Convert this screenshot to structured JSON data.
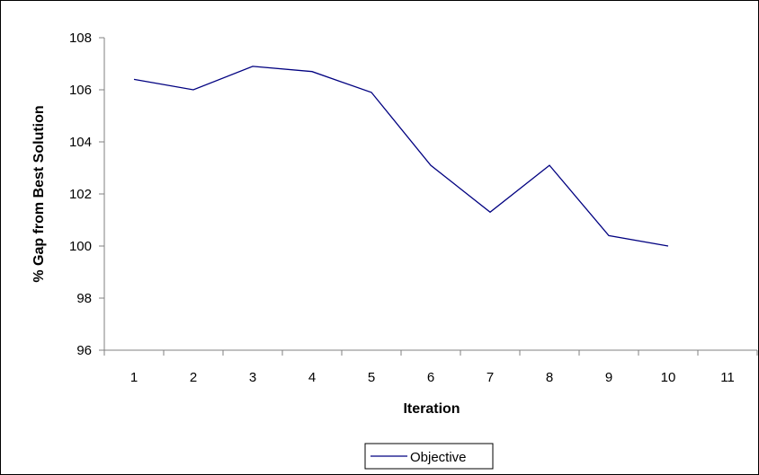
{
  "chart_data": {
    "type": "line",
    "title": "",
    "xlabel": "Iteration",
    "ylabel": "% Gap from Best Solution",
    "categories": [
      "1",
      "2",
      "3",
      "4",
      "5",
      "6",
      "7",
      "8",
      "9",
      "10",
      "11"
    ],
    "series": [
      {
        "name": "Objective",
        "color": "#000080",
        "values": [
          106.4,
          106.0,
          106.9,
          106.7,
          105.9,
          103.1,
          101.3,
          103.1,
          100.4,
          100.0,
          null
        ]
      }
    ],
    "ylim": [
      96,
      108
    ],
    "yticks": [
      "96",
      "98",
      "100",
      "102",
      "104",
      "106",
      "108"
    ],
    "grid": false,
    "legend_position": "bottom-center",
    "colors": {
      "border": "#000000",
      "axis": "#808080",
      "line": "#000080"
    }
  }
}
